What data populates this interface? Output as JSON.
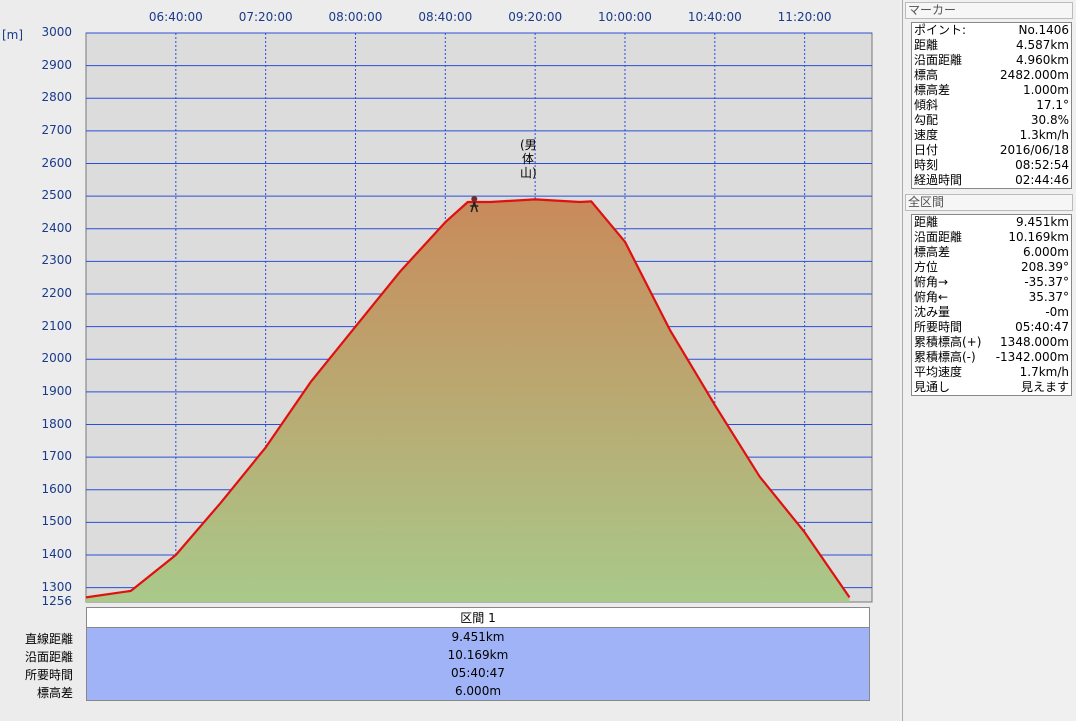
{
  "chart": {
    "unit_label": "[m]",
    "y_ticks": [
      "3000",
      "2900",
      "2800",
      "2700",
      "2600",
      "2500",
      "2400",
      "2300",
      "2200",
      "2100",
      "2000",
      "1900",
      "1800",
      "1700",
      "1600",
      "1500",
      "1400",
      "1300",
      "1256"
    ],
    "x_ticks": [
      "06:40:00",
      "07:20:00",
      "08:00:00",
      "08:40:00",
      "09:20:00",
      "10:00:00",
      "10:40:00",
      "11:20:00"
    ],
    "peak_label": "(男体山)",
    "colors": {
      "line": "#e01010",
      "grid": "#2a4fd8",
      "plot_bg": "#dcdcdc",
      "fill_top": "#c98a5a",
      "fill_bottom": "#a9c98a"
    }
  },
  "chart_data": {
    "type": "area",
    "title": "",
    "xlabel": "",
    "ylabel": "[m]",
    "ylim": [
      1256,
      3000
    ],
    "x": [
      "06:00",
      "06:20",
      "06:40",
      "07:00",
      "07:20",
      "07:40",
      "08:00",
      "08:20",
      "08:40",
      "08:50",
      "09:00",
      "09:20",
      "09:40",
      "09:45",
      "10:00",
      "10:20",
      "10:40",
      "11:00",
      "11:20",
      "11:40"
    ],
    "series": [
      {
        "values": [
          1270,
          1290,
          1400,
          1560,
          1730,
          1930,
          2100,
          2270,
          2420,
          2482,
          2482,
          2490,
          2482,
          2484,
          2360,
          2090,
          1860,
          1640,
          1470,
          1270
        ]
      }
    ]
  },
  "section": {
    "header": "区間 1",
    "labels": [
      "直線距離",
      "沿面距離",
      "所要時間",
      "標高差"
    ],
    "values": [
      "9.451km",
      "10.169km",
      "05:40:47",
      "6.000m"
    ]
  },
  "marker_panel": {
    "title": "マーカー",
    "rows": [
      {
        "label": "ポイント:",
        "value": "No.1406"
      },
      {
        "label": "距離",
        "value": "4.587km"
      },
      {
        "label": "沿面距離",
        "value": "4.960km"
      },
      {
        "label": "標高",
        "value": "2482.000m"
      },
      {
        "label": "標高差",
        "value": "1.000m"
      },
      {
        "label": "傾斜",
        "value": "17.1°"
      },
      {
        "label": "勾配",
        "value": "30.8%"
      },
      {
        "label": "速度",
        "value": "1.3km/h"
      },
      {
        "label": "日付",
        "value": "2016/06/18"
      },
      {
        "label": "時刻",
        "value": "08:52:54"
      },
      {
        "label": "経過時間",
        "value": "02:44:46"
      }
    ]
  },
  "section_panel": {
    "title": "全区間",
    "rows": [
      {
        "label": "距離",
        "value": "9.451km"
      },
      {
        "label": "沿面距離",
        "value": "10.169km"
      },
      {
        "label": "標高差",
        "value": "6.000m"
      },
      {
        "label": "方位",
        "value": "208.39°"
      },
      {
        "label": "俯角→",
        "value": "-35.37°"
      },
      {
        "label": "俯角←",
        "value": "35.37°"
      },
      {
        "label": "沈み量",
        "value": "-0m"
      },
      {
        "label": "所要時間",
        "value": "05:40:47"
      },
      {
        "label": "累積標高(+)",
        "value": "1348.000m"
      },
      {
        "label": "累積標高(-)",
        "value": "-1342.000m"
      },
      {
        "label": "平均速度",
        "value": "1.7km/h"
      },
      {
        "label": "見通し",
        "value": "見えます"
      }
    ]
  }
}
